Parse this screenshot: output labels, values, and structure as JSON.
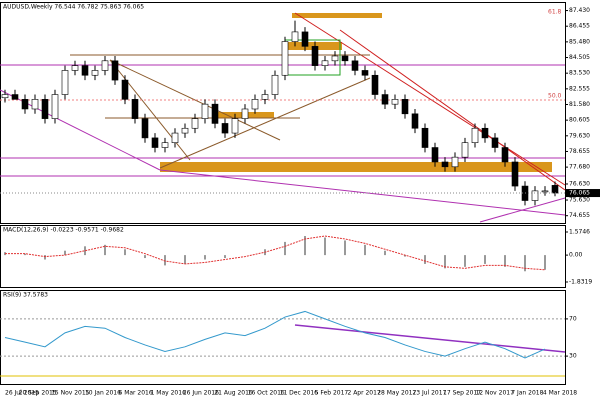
{
  "chart_data": [
    {
      "type": "candlestick",
      "title": "AUDUSD,Weekly 76.544 76.782 75.863 76.065",
      "open": [
        82.0,
        82.2,
        81.9,
        81.3,
        81.9,
        80.7,
        82.2,
        83.7,
        84.0,
        83.4,
        83.7,
        84.3,
        83.1,
        81.9,
        80.7,
        79.5,
        78.9,
        79.2,
        79.8,
        80.1,
        80.7,
        81.6,
        80.4,
        79.8,
        80.7,
        81.3,
        81.9,
        82.2,
        83.4,
        85.5,
        86.1,
        85.2,
        84.0,
        84.3,
        84.6,
        84.3,
        83.7,
        83.4,
        82.2,
        81.6,
        81.9,
        81.0,
        80.1,
        78.9,
        78.0,
        77.7,
        78.3,
        79.2,
        80.1,
        79.5,
        78.9,
        78.0,
        76.5,
        75.6,
        76.2,
        76.544
      ],
      "high": [
        82.5,
        82.5,
        82.2,
        82.2,
        82.2,
        82.5,
        84.0,
        84.3,
        84.3,
        84.0,
        84.6,
        84.6,
        83.4,
        82.2,
        81.0,
        79.8,
        79.5,
        80.1,
        80.4,
        81.0,
        81.9,
        81.9,
        80.7,
        81.0,
        81.6,
        82.2,
        82.5,
        83.7,
        85.8,
        86.8,
        86.4,
        85.5,
        84.6,
        84.9,
        84.9,
        84.6,
        84.0,
        83.7,
        82.5,
        82.2,
        82.2,
        81.3,
        80.4,
        79.2,
        78.3,
        78.6,
        79.5,
        80.4,
        80.4,
        79.8,
        79.2,
        78.3,
        76.8,
        76.5,
        76.5,
        76.782
      ],
      "low": [
        81.7,
        81.9,
        81.0,
        81.0,
        80.4,
        80.4,
        81.9,
        83.4,
        83.1,
        83.1,
        83.4,
        82.8,
        81.6,
        80.4,
        79.2,
        78.6,
        78.6,
        78.9,
        79.5,
        79.8,
        80.4,
        80.1,
        79.5,
        79.5,
        80.4,
        81.0,
        81.6,
        81.9,
        83.1,
        85.2,
        84.9,
        83.7,
        83.7,
        84.0,
        84.0,
        83.4,
        83.1,
        81.9,
        81.3,
        81.3,
        80.7,
        79.8,
        78.6,
        77.7,
        77.4,
        77.4,
        78.0,
        78.9,
        79.2,
        78.6,
        77.7,
        76.2,
        75.3,
        75.3,
        75.9,
        75.863
      ],
      "close": [
        82.2,
        81.9,
        81.3,
        81.9,
        80.7,
        82.2,
        83.7,
        84.0,
        83.4,
        83.7,
        84.3,
        83.1,
        81.9,
        80.7,
        79.5,
        78.9,
        79.2,
        79.8,
        80.1,
        80.7,
        81.6,
        80.4,
        79.8,
        80.7,
        81.3,
        81.9,
        82.2,
        83.4,
        85.5,
        86.1,
        85.2,
        84.0,
        84.3,
        84.6,
        84.3,
        83.7,
        83.4,
        82.2,
        81.6,
        81.9,
        81.0,
        80.1,
        78.9,
        78.0,
        77.7,
        78.3,
        79.2,
        80.1,
        79.5,
        78.9,
        78.0,
        76.5,
        75.6,
        76.2,
        76.2,
        76.065
      ],
      "last_price": {
        "value": 76.065,
        "label": "76.065"
      },
      "fib_labels": [
        "61.8",
        "50.0"
      ],
      "ylim": [
        74.2,
        87.9
      ],
      "yticks": [
        {
          "value": 87.43,
          "label": "87.430"
        },
        {
          "value": 86.455,
          "label": "86.455"
        },
        {
          "value": 85.48,
          "label": "85.480"
        },
        {
          "value": 84.505,
          "label": "84.505"
        },
        {
          "value": 83.53,
          "label": "83.530"
        },
        {
          "value": 82.555,
          "label": "82.555"
        },
        {
          "value": 81.58,
          "label": "81.580"
        },
        {
          "value": 80.605,
          "label": "80.605"
        },
        {
          "value": 79.63,
          "label": "79.630"
        },
        {
          "value": 78.655,
          "label": "78.655"
        },
        {
          "value": 77.68,
          "label": "77.680"
        },
        {
          "value": 76.63,
          "label": "76.630"
        },
        {
          "value": 75.63,
          "label": "75.630"
        },
        {
          "value": 74.655,
          "label": "74.655"
        }
      ],
      "date_labels": [
        "26 Jul 2015",
        "20 Sep 2015",
        "15 Nov 2015",
        "10 Jan 2016",
        "6 Mar 2016",
        "1 May 2016",
        "26 Jun 2016",
        "21 Aug 2016",
        "16 Oct 2016",
        "11 Dec 2016",
        "5 Feb 2017",
        "2 Apr 2017",
        "28 May 2017",
        "23 Jul 2017",
        "17 Sep 2017",
        "12 Nov 2017",
        "7 Jan 2018",
        "4 Mar 2018"
      ]
    },
    {
      "type": "macd",
      "title": "MACD(12,26,9) -0.0223 -0.9571 -0.9682",
      "histogram": {
        "color": "#999999",
        "values": [
          0.2,
          0.1,
          -0.3,
          0.3,
          0.6,
          0.7,
          0.4,
          -0.2,
          -0.7,
          -0.6,
          -0.3,
          -0.2,
          0.0,
          0.4,
          0.9,
          1.3,
          1.2,
          1.0,
          0.7,
          0.3,
          -0.1,
          -0.6,
          -0.9,
          -0.8,
          -0.6,
          -0.8,
          -1.1,
          -1.0
        ]
      },
      "signal": {
        "color": "#e03030",
        "values": [
          0.1,
          0.1,
          -0.1,
          0.0,
          0.3,
          0.6,
          0.5,
          0.1,
          -0.4,
          -0.6,
          -0.5,
          -0.3,
          -0.1,
          0.2,
          0.6,
          1.1,
          1.3,
          1.1,
          0.8,
          0.4,
          0.0,
          -0.4,
          -0.8,
          -0.9,
          -0.7,
          -0.7,
          -0.9,
          -1.0
        ]
      },
      "ylim": [
        -1.8319,
        1.5746
      ],
      "yticks": [
        {
          "value": 1.5746,
          "label": "1.5746"
        },
        {
          "value": 0,
          "label": "0.00"
        },
        {
          "value": -1.8319,
          "label": "-1.8319"
        }
      ]
    },
    {
      "type": "rsi",
      "title": "RSI(9) 37.5783",
      "color": "#3399cc",
      "values": [
        50,
        45,
        40,
        55,
        62,
        60,
        50,
        42,
        35,
        40,
        48,
        55,
        52,
        60,
        72,
        78,
        70,
        62,
        55,
        50,
        42,
        35,
        30,
        38,
        45,
        38,
        28,
        37.5783
      ],
      "ylim": [
        0,
        100
      ],
      "yticks": [
        70,
        30
      ]
    }
  ]
}
